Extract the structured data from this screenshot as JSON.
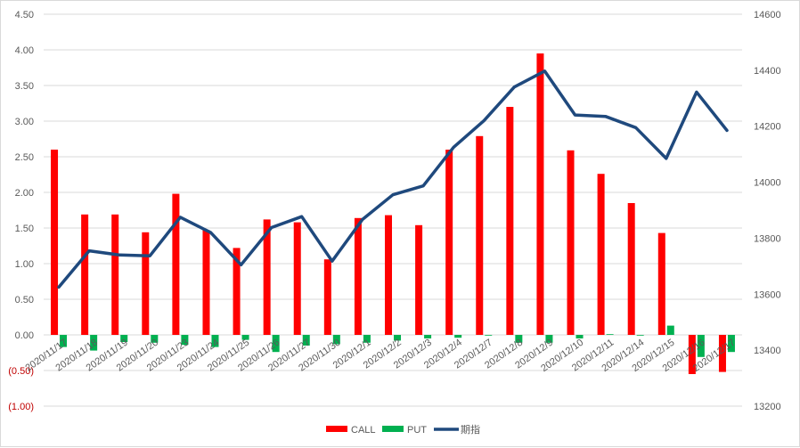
{
  "chart_data": {
    "type": "bar",
    "categories": [
      "2020/11/17",
      "2020/11/18",
      "2020/11/19",
      "2020/11/20",
      "2020/11/23",
      "2020/11/24",
      "2020/11/25",
      "2020/11/26",
      "2020/11/27",
      "2020/11/30",
      "2020/12/1",
      "2020/12/2",
      "2020/12/3",
      "2020/12/4",
      "2020/12/7",
      "2020/12/8",
      "2020/12/9",
      "2020/12/10",
      "2020/12/11",
      "2020/12/14",
      "2020/12/15",
      "2020/12/16",
      "2020/12/17"
    ],
    "series": [
      {
        "name": "CALL",
        "type": "bar",
        "axis": "left",
        "color": "#ff0000",
        "values": [
          2.6,
          1.69,
          1.69,
          1.44,
          1.98,
          1.47,
          1.22,
          1.62,
          1.58,
          1.06,
          1.64,
          1.68,
          1.54,
          2.6,
          2.79,
          3.2,
          3.95,
          2.59,
          2.26,
          1.85,
          1.43,
          -0.55,
          -0.52
        ]
      },
      {
        "name": "PUT",
        "type": "bar",
        "axis": "left",
        "color": "#00b050",
        "values": [
          -0.17,
          -0.22,
          -0.1,
          -0.11,
          -0.14,
          -0.17,
          -0.07,
          -0.24,
          -0.15,
          -0.13,
          -0.11,
          -0.08,
          -0.05,
          -0.04,
          -0.01,
          -0.11,
          -0.11,
          -0.05,
          0.01,
          -0.01,
          0.13,
          -0.31,
          -0.24
        ]
      },
      {
        "name": "期指",
        "type": "line",
        "axis": "right",
        "color": "#1f497d",
        "values": [
          13625,
          13755,
          13740,
          13737,
          13875,
          13820,
          13705,
          13838,
          13877,
          13718,
          13867,
          13955,
          13987,
          14125,
          14220,
          14340,
          14397,
          14240,
          14235,
          14195,
          14085,
          14322,
          14185
        ]
      }
    ],
    "left_axis": {
      "min": -1.0,
      "max": 4.5,
      "ticks": [
        "4.50",
        "4.00",
        "3.50",
        "3.00",
        "2.50",
        "2.00",
        "1.50",
        "1.00",
        "0.50",
        "0.00",
        "(0.50)",
        "(1.00)"
      ]
    },
    "right_axis": {
      "min": 13200,
      "max": 14600,
      "ticks": [
        "14600",
        "14400",
        "14200",
        "14000",
        "13800",
        "13600",
        "13400",
        "13200"
      ]
    },
    "grid": true,
    "legend_position": "bottom",
    "title": "",
    "xlabel": "",
    "ylabel": ""
  }
}
